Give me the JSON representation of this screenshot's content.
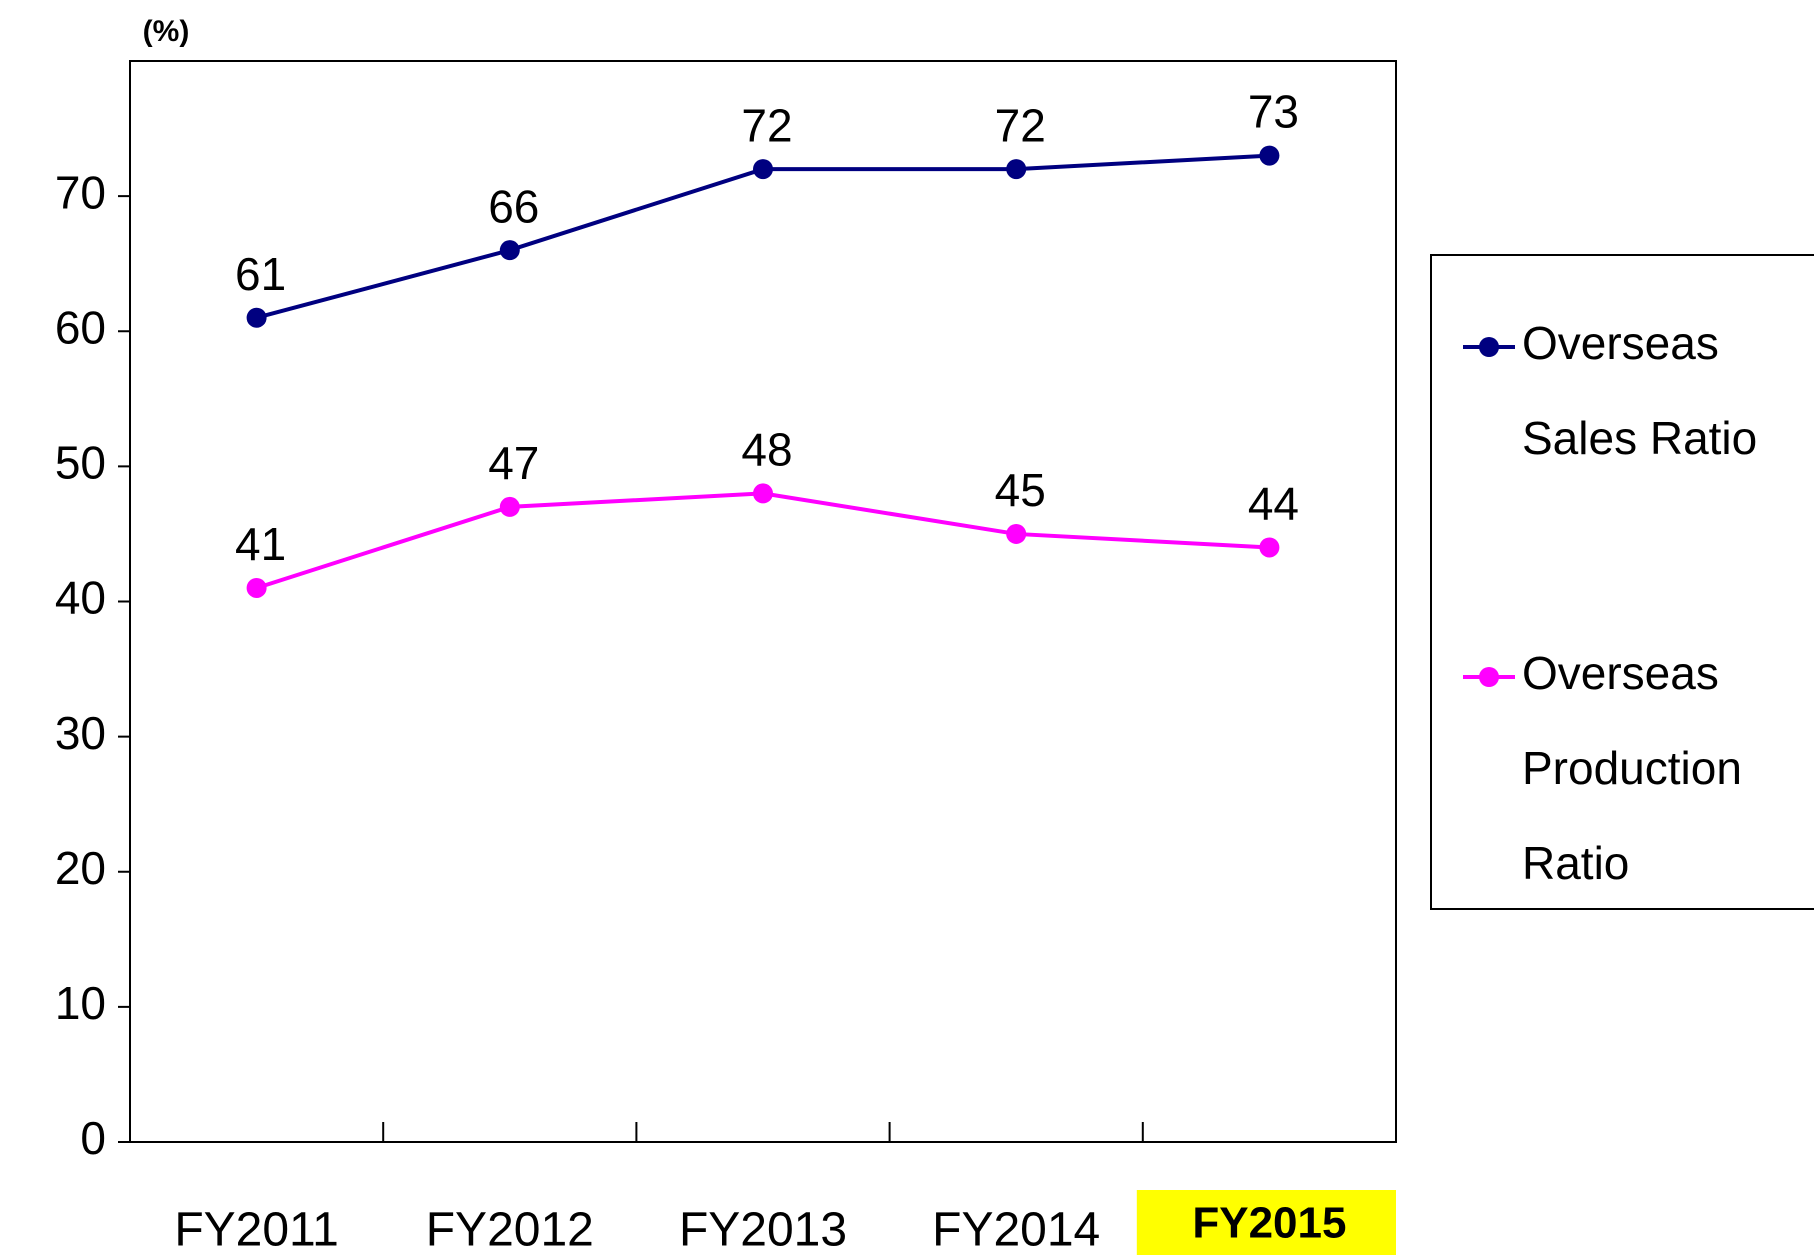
{
  "chart_data": {
    "type": "line",
    "y_unit_label": "(%)",
    "categories": [
      "FY2011",
      "FY2012",
      "FY2013",
      "FY2014",
      "FY2015"
    ],
    "highlight": {
      "index": 4,
      "color": "#ffff00"
    },
    "series": [
      {
        "name": "Overseas Sales Ratio",
        "color": "#000080",
        "values": [
          61,
          66,
          72,
          72,
          73
        ]
      },
      {
        "name": "Overseas Production Ratio",
        "color": "#ff00ff",
        "values": [
          41,
          47,
          48,
          45,
          44
        ]
      }
    ],
    "ylim": [
      0,
      80
    ],
    "yticks": [
      0,
      10,
      20,
      30,
      40,
      50,
      60,
      70
    ],
    "grid": false,
    "legend": "right"
  }
}
